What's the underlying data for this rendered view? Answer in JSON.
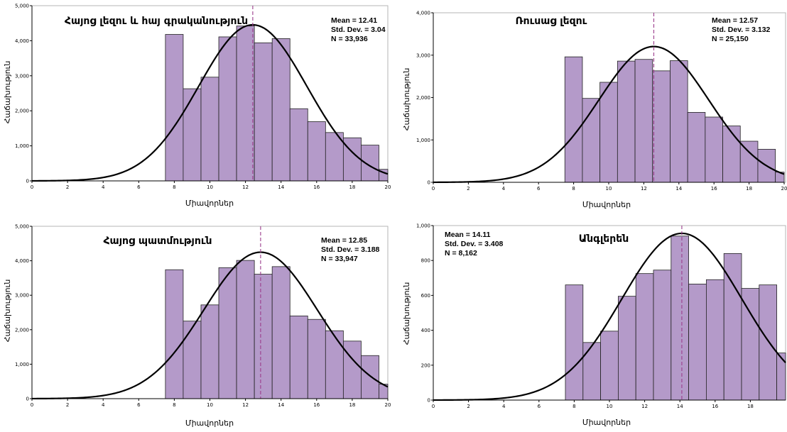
{
  "chart_data": [
    {
      "type": "bar",
      "title": "Հայոց լեզու և հայ գրականություն",
      "xlabel": "Միավորներ",
      "ylabel": "Հաճախություն",
      "stats": {
        "mean": "Mean = 12.41",
        "sd": "Std. Dev. = 3.04",
        "n": "N = 33,936"
      },
      "mean_value": 12.41,
      "sd_value": 3.04,
      "n_value": 33936,
      "xlim": [
        0,
        20
      ],
      "ylim": [
        0,
        5000
      ],
      "x_ticks": [
        "0",
        "2",
        "4",
        "6",
        "8",
        "10",
        "12",
        "14",
        "16",
        "18",
        "20"
      ],
      "y_ticks": [
        "0",
        "1,000",
        "2,000",
        "3,000",
        "4,000",
        "5,000"
      ],
      "bin_start": 7.5,
      "bin_width": 1,
      "values": [
        4180,
        2630,
        2960,
        4110,
        4420,
        3940,
        4060,
        2060,
        1690,
        1380,
        1230,
        1020,
        330
      ]
    },
    {
      "type": "bar",
      "title": "Ռուսաց լեզու",
      "xlabel": "Միավորներ",
      "ylabel": "Հաճախություն",
      "stats": {
        "mean": "Mean = 12.57",
        "sd": "Std. Dev. = 3.132",
        "n": "N = 25,150"
      },
      "mean_value": 12.57,
      "sd_value": 3.132,
      "n_value": 25150,
      "xlim": [
        0,
        20
      ],
      "ylim": [
        0,
        4000
      ],
      "x_ticks": [
        "0",
        "2",
        "4",
        "6",
        "8",
        "10",
        "12",
        "14",
        "16",
        "18",
        "20"
      ],
      "y_ticks": [
        "0",
        "1,000",
        "2,000",
        "3,000",
        "4,000"
      ],
      "bin_start": 7.5,
      "bin_width": 1,
      "values": [
        2960,
        1980,
        2360,
        2860,
        2900,
        2630,
        2870,
        1650,
        1540,
        1330,
        970,
        780,
        240
      ]
    },
    {
      "type": "bar",
      "title": "Հայոց պատմություն",
      "xlabel": "Միավորներ",
      "ylabel": "Հաճախություն",
      "stats": {
        "mean": "Mean = 12.85",
        "sd": "Std. Dev. = 3.188",
        "n": "N = 33,947"
      },
      "mean_value": 12.85,
      "sd_value": 3.188,
      "n_value": 33947,
      "xlim": [
        0,
        20
      ],
      "ylim": [
        0,
        5000
      ],
      "x_ticks": [
        "0",
        "2",
        "4",
        "6",
        "8",
        "10",
        "12",
        "14",
        "16",
        "18",
        "20"
      ],
      "y_ticks": [
        "0",
        "1,000",
        "2,000",
        "3,000",
        "4,000",
        "5,000"
      ],
      "bin_start": 7.5,
      "bin_width": 1,
      "values": [
        3740,
        2250,
        2720,
        3800,
        4010,
        3610,
        3830,
        2400,
        2300,
        1970,
        1670,
        1250,
        420
      ]
    },
    {
      "type": "bar",
      "title": "Անգլերեն",
      "xlabel": "Միավորներ",
      "ylabel": "Հաճախություն",
      "stats": {
        "mean": "Mean = 14.11",
        "sd": "Std. Dev. = 3.408",
        "n": "N = 8,162"
      },
      "mean_value": 14.11,
      "sd_value": 3.408,
      "n_value": 8162,
      "xlim": [
        0,
        20
      ],
      "ylim": [
        0,
        1000
      ],
      "x_ticks": [
        "0",
        "2",
        "4",
        "6",
        "8",
        "10",
        "12",
        "14",
        "16",
        "18"
      ],
      "y_ticks": [
        "0",
        "200",
        "400",
        "600",
        "800",
        "1,000"
      ],
      "bin_start": 7.5,
      "bin_width": 1,
      "values": [
        660,
        330,
        395,
        595,
        725,
        745,
        940,
        665,
        690,
        840,
        640,
        660,
        270
      ]
    }
  ],
  "colors": {
    "bar_fill": "#b49ac9",
    "bar_stroke": "#222222",
    "curve": "#000000",
    "mean_line": "#9b3c8c"
  }
}
